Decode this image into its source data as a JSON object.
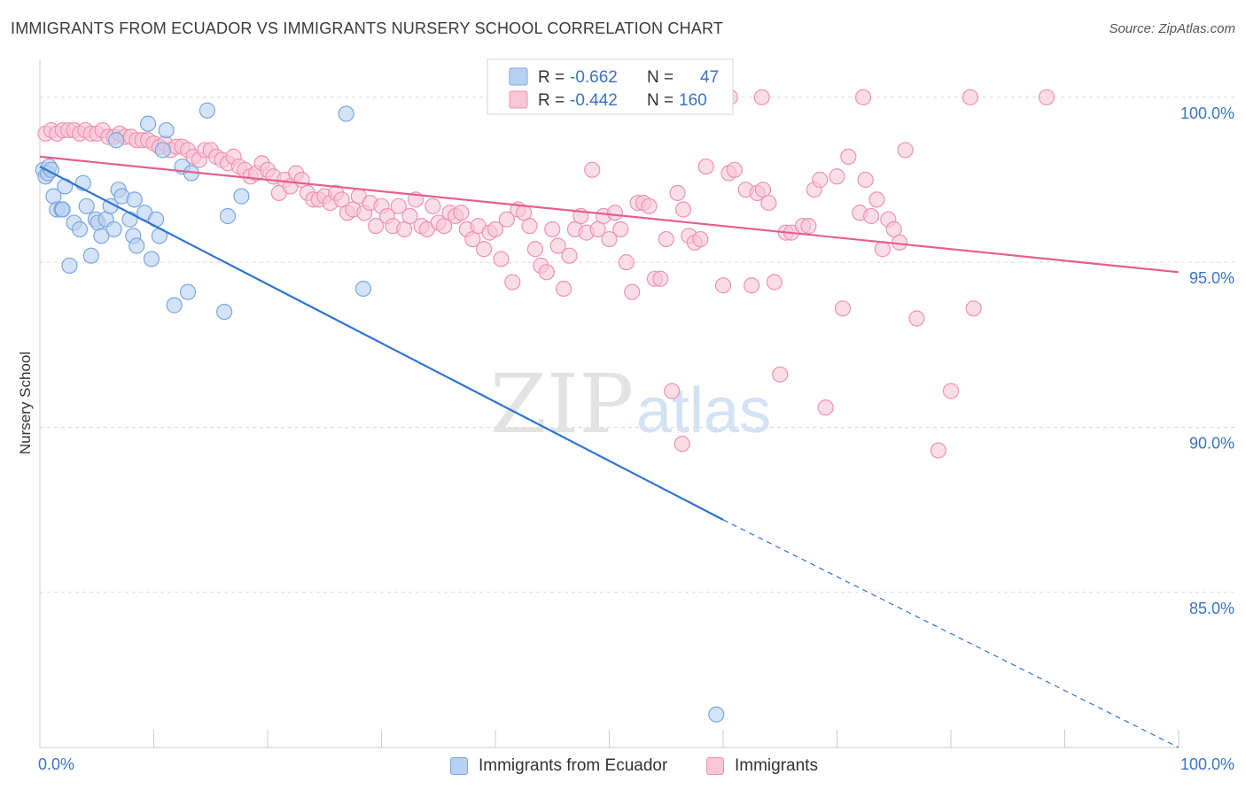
{
  "header": {
    "title": "IMMIGRANTS FROM ECUADOR VS IMMIGRANTS NURSERY SCHOOL CORRELATION CHART",
    "source": "Source: ZipAtlas.com"
  },
  "watermark": {
    "zip": "ZIP",
    "atlas": "atlas"
  },
  "colors": {
    "blue_fill": "#b8d0f2",
    "blue_stroke": "#7ba7e0",
    "blue_line": "#2f74d0",
    "pink_fill": "#f8c6d6",
    "pink_stroke": "#ee93b1",
    "pink_line": "#e4608c",
    "axis_label": "#3b73c4",
    "grid": "#d8d8d8"
  },
  "legend": {
    "rows": [
      {
        "r_label": "R =",
        "r_value": "-0.662",
        "n_label": "N =",
        "n_value": "47"
      },
      {
        "r_label": "R =",
        "r_value": "-0.442",
        "n_label": "N =",
        "n_value": "160"
      }
    ]
  },
  "chart_data": {
    "type": "scatter",
    "title": "IMMIGRANTS FROM ECUADOR VS IMMIGRANTS NURSERY SCHOOL CORRELATION CHART",
    "xlabel": "",
    "ylabel": "Nursery School",
    "xlim": [
      0,
      100
    ],
    "ylim": [
      80.3,
      100.8
    ],
    "x_tick_labels": [
      "0.0%",
      "100.0%"
    ],
    "y_ticks": [
      100,
      95,
      90,
      85
    ],
    "y_tick_labels": [
      "100.0%",
      "95.0%",
      "90.0%",
      "85.0%"
    ],
    "grid": "horizontal dashed",
    "legend_position": "top-center",
    "series": [
      {
        "name": "Immigrants from Ecuador",
        "color": "#b8d0f2",
        "trend": {
          "x": [
            0,
            60
          ],
          "y": [
            97.9,
            87.2
          ],
          "dashed_extension_to": [
            100,
            80.3
          ]
        },
        "points": [
          [
            0.3,
            97.8
          ],
          [
            0.5,
            97.6
          ],
          [
            0.7,
            97.7
          ],
          [
            0.8,
            97.9
          ],
          [
            1.0,
            97.8
          ],
          [
            1.2,
            97.0
          ],
          [
            1.5,
            96.6
          ],
          [
            1.9,
            96.6
          ],
          [
            2.2,
            97.3
          ],
          [
            2.6,
            94.9
          ],
          [
            3.0,
            96.2
          ],
          [
            3.5,
            96.0
          ],
          [
            3.8,
            97.4
          ],
          [
            4.1,
            96.7
          ],
          [
            4.5,
            95.2
          ],
          [
            4.9,
            96.3
          ],
          [
            5.1,
            96.2
          ],
          [
            5.4,
            95.8
          ],
          [
            5.8,
            96.3
          ],
          [
            6.2,
            96.7
          ],
          [
            6.5,
            96.0
          ],
          [
            6.7,
            98.7
          ],
          [
            6.9,
            97.2
          ],
          [
            7.2,
            97.0
          ],
          [
            7.9,
            96.3
          ],
          [
            8.2,
            95.8
          ],
          [
            8.3,
            96.9
          ],
          [
            8.5,
            95.5
          ],
          [
            9.2,
            96.5
          ],
          [
            9.5,
            99.2
          ],
          [
            9.8,
            95.1
          ],
          [
            10.2,
            96.3
          ],
          [
            10.5,
            95.8
          ],
          [
            10.8,
            98.4
          ],
          [
            11.1,
            99.0
          ],
          [
            11.8,
            93.7
          ],
          [
            12.5,
            97.9
          ],
          [
            13.0,
            94.1
          ],
          [
            13.3,
            97.7
          ],
          [
            14.7,
            99.6
          ],
          [
            16.2,
            93.5
          ],
          [
            16.5,
            96.4
          ],
          [
            17.7,
            97.0
          ],
          [
            26.9,
            99.5
          ],
          [
            28.4,
            94.2
          ],
          [
            59.4,
            81.3
          ],
          [
            2.0,
            96.6
          ]
        ]
      },
      {
        "name": "Immigrants",
        "color": "#f8c6d6",
        "trend": {
          "x": [
            0,
            100
          ],
          "y": [
            98.2,
            94.7
          ]
        },
        "points": [
          [
            0.5,
            98.9
          ],
          [
            1.0,
            99.0
          ],
          [
            1.5,
            98.9
          ],
          [
            2.0,
            99.0
          ],
          [
            2.5,
            99.0
          ],
          [
            3.0,
            99.0
          ],
          [
            3.5,
            98.9
          ],
          [
            4.0,
            99.0
          ],
          [
            4.5,
            98.9
          ],
          [
            5.0,
            98.9
          ],
          [
            5.5,
            99.0
          ],
          [
            6.0,
            98.8
          ],
          [
            6.5,
            98.8
          ],
          [
            7.0,
            98.9
          ],
          [
            7.5,
            98.8
          ],
          [
            8.0,
            98.8
          ],
          [
            8.5,
            98.7
          ],
          [
            9.0,
            98.7
          ],
          [
            9.5,
            98.7
          ],
          [
            10.0,
            98.6
          ],
          [
            10.5,
            98.5
          ],
          [
            11.0,
            98.6
          ],
          [
            11.5,
            98.4
          ],
          [
            12.0,
            98.5
          ],
          [
            12.5,
            98.5
          ],
          [
            13.0,
            98.4
          ],
          [
            13.5,
            98.2
          ],
          [
            14.0,
            98.1
          ],
          [
            14.5,
            98.4
          ],
          [
            15.0,
            98.4
          ],
          [
            15.5,
            98.2
          ],
          [
            16.0,
            98.1
          ],
          [
            16.5,
            98.0
          ],
          [
            17.0,
            98.2
          ],
          [
            17.5,
            97.9
          ],
          [
            18.0,
            97.8
          ],
          [
            18.5,
            97.6
          ],
          [
            19.0,
            97.7
          ],
          [
            19.5,
            98.0
          ],
          [
            20.0,
            97.8
          ],
          [
            20.5,
            97.6
          ],
          [
            21.0,
            97.1
          ],
          [
            21.5,
            97.5
          ],
          [
            22.0,
            97.3
          ],
          [
            22.5,
            97.7
          ],
          [
            23.0,
            97.5
          ],
          [
            23.5,
            97.1
          ],
          [
            24.0,
            96.9
          ],
          [
            24.5,
            96.9
          ],
          [
            25.0,
            97.0
          ],
          [
            25.5,
            96.8
          ],
          [
            26.0,
            97.1
          ],
          [
            26.5,
            96.9
          ],
          [
            27.0,
            96.5
          ],
          [
            27.5,
            96.6
          ],
          [
            28.0,
            97.0
          ],
          [
            28.5,
            96.5
          ],
          [
            29.0,
            96.8
          ],
          [
            29.5,
            96.1
          ],
          [
            30.0,
            96.7
          ],
          [
            30.5,
            96.4
          ],
          [
            31.0,
            96.1
          ],
          [
            31.5,
            96.7
          ],
          [
            32.0,
            96.0
          ],
          [
            32.5,
            96.4
          ],
          [
            33.0,
            96.9
          ],
          [
            33.5,
            96.1
          ],
          [
            34.0,
            96.0
          ],
          [
            34.5,
            96.7
          ],
          [
            35.0,
            96.2
          ],
          [
            35.5,
            96.1
          ],
          [
            36.0,
            96.5
          ],
          [
            36.5,
            96.4
          ],
          [
            37.0,
            96.5
          ],
          [
            37.5,
            96.0
          ],
          [
            38.0,
            95.7
          ],
          [
            38.5,
            96.1
          ],
          [
            39.0,
            95.4
          ],
          [
            39.5,
            95.9
          ],
          [
            40.0,
            96.0
          ],
          [
            40.5,
            95.1
          ],
          [
            41.0,
            96.3
          ],
          [
            41.5,
            94.4
          ],
          [
            42.0,
            96.6
          ],
          [
            42.5,
            96.5
          ],
          [
            43.0,
            96.1
          ],
          [
            43.5,
            95.4
          ],
          [
            44.0,
            94.9
          ],
          [
            44.5,
            94.7
          ],
          [
            45.0,
            96.0
          ],
          [
            45.5,
            95.5
          ],
          [
            46.0,
            94.2
          ],
          [
            46.5,
            95.2
          ],
          [
            47.0,
            96.0
          ],
          [
            47.5,
            96.4
          ],
          [
            48.0,
            95.9
          ],
          [
            48.5,
            97.8
          ],
          [
            49.0,
            96.0
          ],
          [
            49.5,
            96.4
          ],
          [
            50.0,
            95.7
          ],
          [
            50.5,
            96.5
          ],
          [
            51.0,
            96.0
          ],
          [
            51.5,
            95.0
          ],
          [
            52.0,
            94.1
          ],
          [
            52.5,
            96.8
          ],
          [
            53.0,
            96.8
          ],
          [
            53.5,
            96.7
          ],
          [
            54.0,
            94.5
          ],
          [
            54.5,
            94.5
          ],
          [
            55.0,
            95.7
          ],
          [
            55.5,
            91.1
          ],
          [
            56.0,
            97.1
          ],
          [
            56.5,
            96.6
          ],
          [
            57.0,
            95.8
          ],
          [
            57.5,
            95.6
          ],
          [
            58.0,
            95.7
          ],
          [
            58.5,
            97.9
          ],
          [
            60.0,
            94.3
          ],
          [
            60.5,
            97.7
          ],
          [
            61.0,
            97.8
          ],
          [
            62.0,
            97.2
          ],
          [
            62.5,
            94.3
          ],
          [
            63.0,
            97.1
          ],
          [
            63.5,
            97.2
          ],
          [
            64.0,
            96.8
          ],
          [
            64.5,
            94.4
          ],
          [
            65.0,
            91.6
          ],
          [
            65.5,
            95.9
          ],
          [
            66.0,
            95.9
          ],
          [
            67.0,
            96.1
          ],
          [
            67.5,
            96.1
          ],
          [
            68.0,
            97.2
          ],
          [
            68.5,
            97.5
          ],
          [
            69.0,
            90.6
          ],
          [
            70.0,
            97.6
          ],
          [
            70.5,
            93.6
          ],
          [
            71.0,
            98.2
          ],
          [
            72.0,
            96.5
          ],
          [
            72.5,
            97.5
          ],
          [
            73.0,
            96.4
          ],
          [
            73.5,
            96.9
          ],
          [
            74.0,
            95.4
          ],
          [
            74.5,
            96.3
          ],
          [
            75.0,
            96.0
          ],
          [
            75.5,
            95.6
          ],
          [
            76.0,
            98.4
          ],
          [
            77.0,
            93.3
          ],
          [
            80.0,
            91.1
          ],
          [
            82.0,
            93.6
          ],
          [
            47.3,
            100.0
          ],
          [
            50.8,
            100.0
          ],
          [
            55.2,
            100.0
          ],
          [
            60.6,
            100.0
          ],
          [
            63.4,
            100.0
          ],
          [
            72.3,
            100.0
          ],
          [
            81.7,
            100.0
          ],
          [
            88.4,
            100.0
          ],
          [
            56.4,
            89.5
          ],
          [
            78.9,
            89.3
          ]
        ]
      }
    ]
  },
  "bottom_legend": [
    {
      "label": "Immigrants from Ecuador"
    },
    {
      "label": "Immigrants"
    }
  ]
}
